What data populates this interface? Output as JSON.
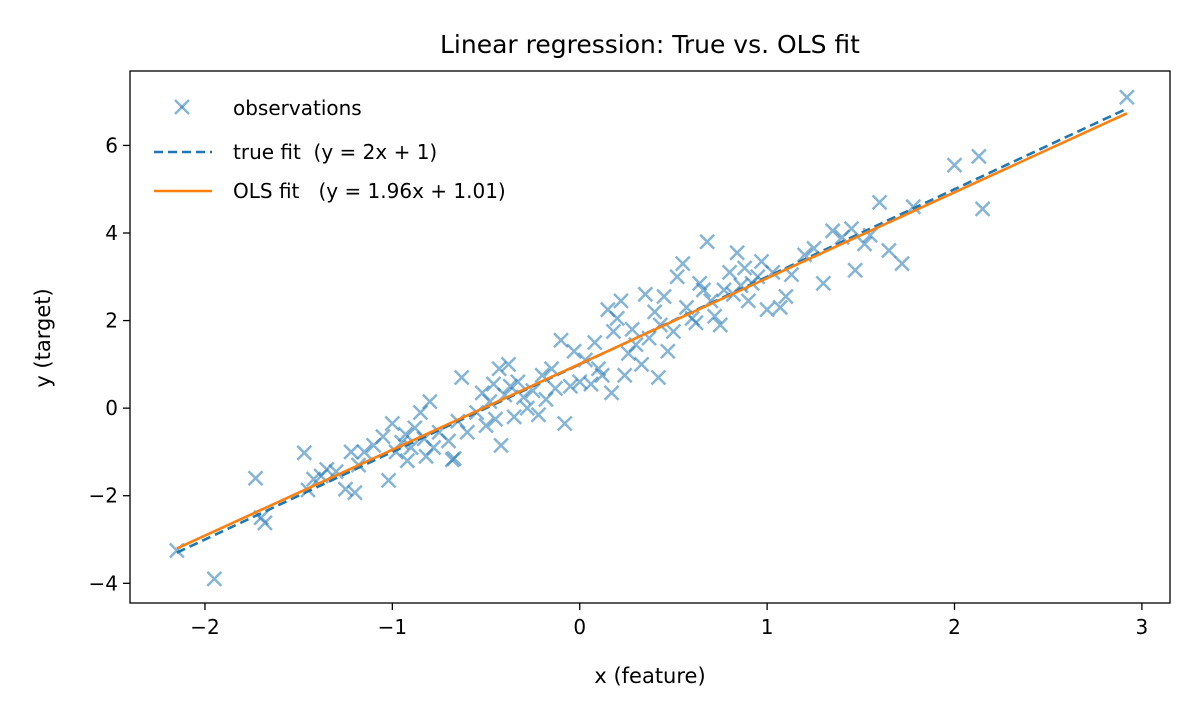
{
  "chart_data": {
    "type": "scatter",
    "title": "Linear regression: True vs. OLS fit",
    "xlabel": "x (feature)",
    "ylabel": "y (target)",
    "xlim": [
      -2.4,
      3.15
    ],
    "ylim": [
      -4.45,
      7.7
    ],
    "xticks": [
      -2,
      -1,
      0,
      1,
      2,
      3
    ],
    "yticks": [
      -4,
      -2,
      0,
      2,
      4,
      6
    ],
    "grid": false,
    "legend_position": "top-left",
    "colors": {
      "observations": "#1f77b4",
      "true_fit": "#1f77b4",
      "ols_fit": "#ff7f0e"
    },
    "series": [
      {
        "name": "observations",
        "kind": "scatter",
        "marker": "x",
        "points": [
          [
            -2.15,
            -3.25
          ],
          [
            -1.95,
            -3.9
          ],
          [
            -1.73,
            -1.6
          ],
          [
            -1.7,
            -2.5
          ],
          [
            -1.68,
            -2.62
          ],
          [
            -1.47,
            -1.02
          ],
          [
            -1.45,
            -1.87
          ],
          [
            -1.42,
            -1.62
          ],
          [
            -1.38,
            -1.55
          ],
          [
            -1.35,
            -1.4
          ],
          [
            -1.3,
            -1.45
          ],
          [
            -1.25,
            -1.85
          ],
          [
            -1.22,
            -1.0
          ],
          [
            -1.2,
            -1.93
          ],
          [
            -1.18,
            -1.3
          ],
          [
            -1.15,
            -1.0
          ],
          [
            -1.1,
            -0.85
          ],
          [
            -1.05,
            -0.65
          ],
          [
            -1.02,
            -1.65
          ],
          [
            -1.0,
            -0.35
          ],
          [
            -0.98,
            -1.0
          ],
          [
            -0.95,
            -0.78
          ],
          [
            -0.93,
            -0.6
          ],
          [
            -0.92,
            -1.2
          ],
          [
            -0.9,
            -0.9
          ],
          [
            -0.88,
            -0.45
          ],
          [
            -0.85,
            -0.1
          ],
          [
            -0.83,
            -0.7
          ],
          [
            -0.82,
            -1.1
          ],
          [
            -0.8,
            0.15
          ],
          [
            -0.78,
            -0.9
          ],
          [
            -0.75,
            -0.55
          ],
          [
            -0.7,
            -0.75
          ],
          [
            -0.68,
            -1.18
          ],
          [
            -0.67,
            -1.15
          ],
          [
            -0.65,
            -0.3
          ],
          [
            -0.63,
            0.7
          ],
          [
            -0.6,
            -0.55
          ],
          [
            -0.55,
            -0.1
          ],
          [
            -0.52,
            0.35
          ],
          [
            -0.5,
            -0.4
          ],
          [
            -0.48,
            0.15
          ],
          [
            -0.46,
            0.55
          ],
          [
            -0.45,
            -0.25
          ],
          [
            -0.43,
            0.9
          ],
          [
            -0.42,
            -0.85
          ],
          [
            -0.4,
            0.3
          ],
          [
            -0.38,
            1.0
          ],
          [
            -0.37,
            0.5
          ],
          [
            -0.35,
            -0.2
          ],
          [
            -0.33,
            0.6
          ],
          [
            -0.3,
            0.25
          ],
          [
            -0.28,
            0.0
          ],
          [
            -0.25,
            0.4
          ],
          [
            -0.22,
            -0.15
          ],
          [
            -0.2,
            0.75
          ],
          [
            -0.18,
            0.2
          ],
          [
            -0.15,
            0.9
          ],
          [
            -0.13,
            0.45
          ],
          [
            -0.1,
            1.55
          ],
          [
            -0.08,
            -0.35
          ],
          [
            -0.05,
            0.5
          ],
          [
            -0.03,
            1.3
          ],
          [
            0.0,
            0.6
          ],
          [
            0.03,
            1.1
          ],
          [
            0.06,
            0.55
          ],
          [
            0.08,
            1.5
          ],
          [
            0.1,
            0.9
          ],
          [
            0.12,
            0.75
          ],
          [
            0.15,
            2.25
          ],
          [
            0.17,
            0.35
          ],
          [
            0.18,
            1.75
          ],
          [
            0.2,
            2.05
          ],
          [
            0.22,
            2.45
          ],
          [
            0.24,
            0.75
          ],
          [
            0.26,
            1.25
          ],
          [
            0.28,
            1.8
          ],
          [
            0.3,
            1.45
          ],
          [
            0.33,
            1.0
          ],
          [
            0.35,
            2.6
          ],
          [
            0.37,
            1.6
          ],
          [
            0.4,
            2.2
          ],
          [
            0.42,
            0.7
          ],
          [
            0.43,
            1.9
          ],
          [
            0.45,
            2.55
          ],
          [
            0.47,
            1.3
          ],
          [
            0.5,
            1.75
          ],
          [
            0.52,
            3.0
          ],
          [
            0.55,
            3.3
          ],
          [
            0.57,
            2.3
          ],
          [
            0.6,
            2.05
          ],
          [
            0.62,
            1.95
          ],
          [
            0.64,
            2.85
          ],
          [
            0.66,
            2.7
          ],
          [
            0.68,
            3.8
          ],
          [
            0.7,
            2.45
          ],
          [
            0.72,
            2.1
          ],
          [
            0.75,
            1.9
          ],
          [
            0.77,
            2.7
          ],
          [
            0.8,
            3.1
          ],
          [
            0.82,
            2.6
          ],
          [
            0.84,
            3.55
          ],
          [
            0.86,
            2.8
          ],
          [
            0.88,
            3.2
          ],
          [
            0.9,
            2.45
          ],
          [
            0.92,
            2.85
          ],
          [
            0.95,
            3.0
          ],
          [
            0.97,
            3.35
          ],
          [
            1.0,
            2.25
          ],
          [
            1.03,
            3.1
          ],
          [
            1.07,
            2.3
          ],
          [
            1.1,
            2.55
          ],
          [
            1.13,
            3.05
          ],
          [
            1.2,
            3.5
          ],
          [
            1.25,
            3.65
          ],
          [
            1.3,
            2.85
          ],
          [
            1.35,
            4.05
          ],
          [
            1.4,
            3.9
          ],
          [
            1.45,
            4.1
          ],
          [
            1.47,
            3.15
          ],
          [
            1.52,
            3.75
          ],
          [
            1.55,
            3.95
          ],
          [
            1.6,
            4.7
          ],
          [
            1.65,
            3.6
          ],
          [
            1.72,
            3.3
          ],
          [
            1.78,
            4.6
          ],
          [
            2.0,
            5.55
          ],
          [
            2.13,
            5.75
          ],
          [
            2.15,
            4.55
          ],
          [
            2.92,
            7.1
          ]
        ]
      },
      {
        "name": "true fit  (y = 2x + 1)",
        "kind": "line",
        "style": "dashed",
        "slope": 2,
        "intercept": 1,
        "x_range": [
          -2.15,
          2.92
        ]
      },
      {
        "name": "OLS fit   (y = 1.96x + 1.01)",
        "kind": "line",
        "style": "solid",
        "slope": 1.96,
        "intercept": 1.01,
        "x_range": [
          -2.15,
          2.92
        ]
      }
    ]
  }
}
